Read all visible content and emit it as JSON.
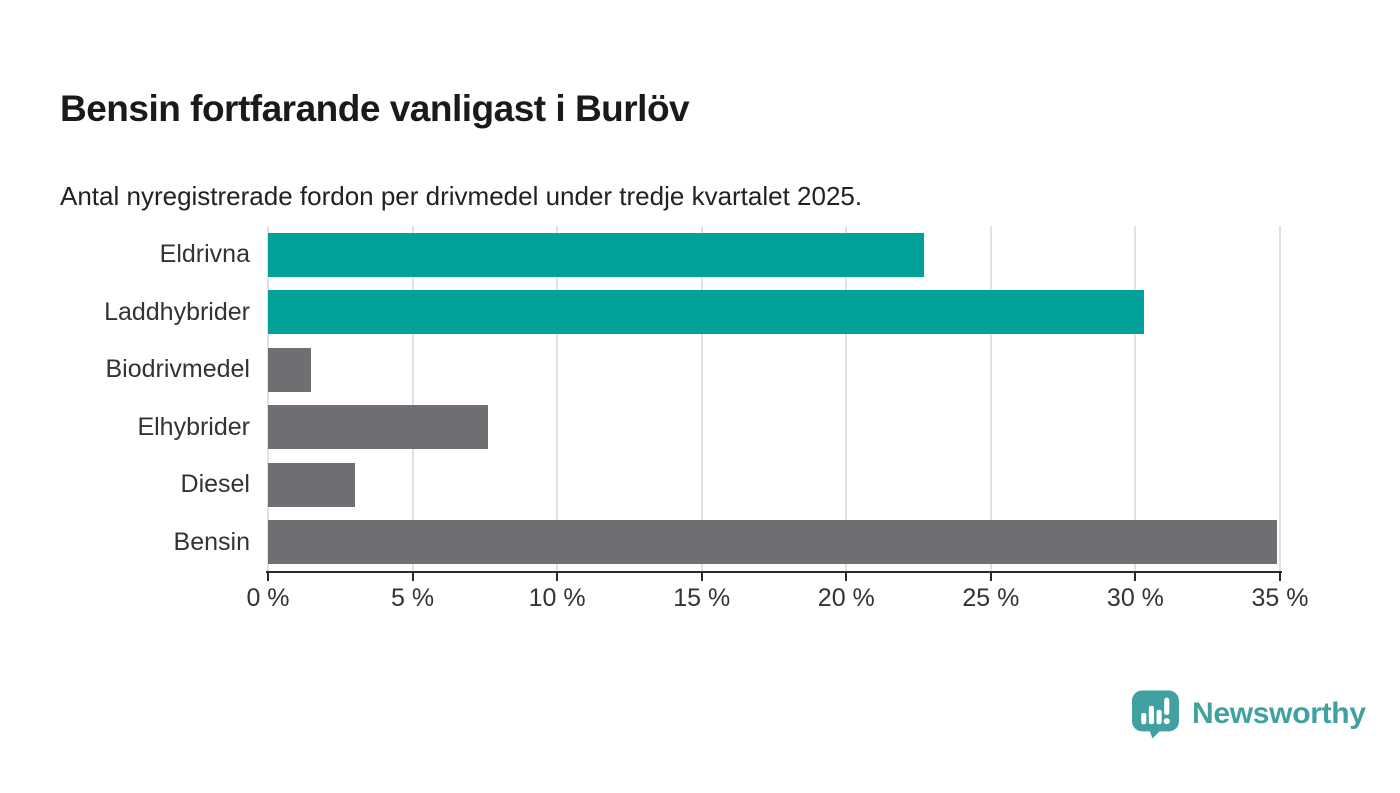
{
  "header": {
    "title": "Bensin fortfarande vanligast i Burlöv",
    "subtitle": "Antal nyregistrerade fordon per drivmedel under tredje kvartalet 2025."
  },
  "chart_data": {
    "type": "bar",
    "orientation": "horizontal",
    "title": "Bensin fortfarande vanligast i Burlöv",
    "subtitle": "Antal nyregistrerade fordon per drivmedel under tredje kvartalet 2025.",
    "categories": [
      "Eldrivna",
      "Laddhybrider",
      "Biodrivmedel",
      "Elhybrider",
      "Diesel",
      "Bensin"
    ],
    "values": [
      22.7,
      30.3,
      1.5,
      7.6,
      3.0,
      34.9
    ],
    "unit": "%",
    "bar_colors": [
      "#00A29A",
      "#00A29A",
      "#6F6E73",
      "#6F6E73",
      "#6F6E73",
      "#6F6E73"
    ],
    "xlim": [
      0,
      35
    ],
    "x_ticks": [
      0,
      5,
      10,
      15,
      20,
      25,
      30,
      35
    ],
    "x_tick_labels": [
      "0 %",
      "5 %",
      "10 %",
      "15 %",
      "20 %",
      "25 %",
      "30 %",
      "35 %"
    ],
    "grid": true,
    "legend": false
  },
  "colors": {
    "teal_bar": "#00A29A",
    "gray_bar": "#6F6E73",
    "logo": "#40A1A0",
    "gridline": "#E1E1E1",
    "axis": "#2B2B2B"
  },
  "footer": {
    "brand": "Newsworthy"
  }
}
